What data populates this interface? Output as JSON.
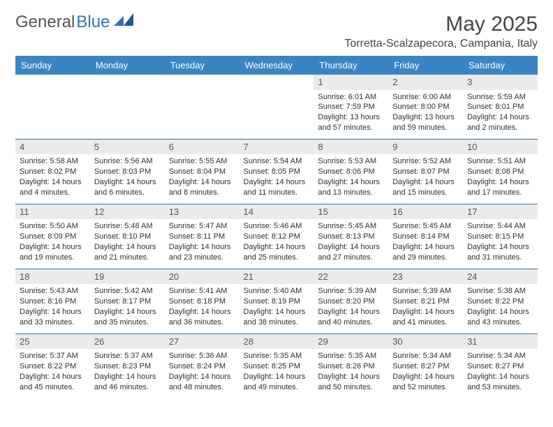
{
  "brand": {
    "text1": "General",
    "text2": "Blue"
  },
  "title": "May 2025",
  "location": "Torretta-Scalzapecora, Campania, Italy",
  "colors": {
    "header_bg": "#3b84c4",
    "header_text": "#ffffff",
    "daynum_bg": "#ebebeb",
    "row_border": "#326fa7",
    "brand_blue": "#2f72b9"
  },
  "day_headers": [
    "Sunday",
    "Monday",
    "Tuesday",
    "Wednesday",
    "Thursday",
    "Friday",
    "Saturday"
  ],
  "weeks": [
    [
      {
        "n": "",
        "sr": "",
        "ss": "",
        "dl": ""
      },
      {
        "n": "",
        "sr": "",
        "ss": "",
        "dl": ""
      },
      {
        "n": "",
        "sr": "",
        "ss": "",
        "dl": ""
      },
      {
        "n": "",
        "sr": "",
        "ss": "",
        "dl": ""
      },
      {
        "n": "1",
        "sr": "Sunrise: 6:01 AM",
        "ss": "Sunset: 7:59 PM",
        "dl": "Daylight: 13 hours and 57 minutes."
      },
      {
        "n": "2",
        "sr": "Sunrise: 6:00 AM",
        "ss": "Sunset: 8:00 PM",
        "dl": "Daylight: 13 hours and 59 minutes."
      },
      {
        "n": "3",
        "sr": "Sunrise: 5:59 AM",
        "ss": "Sunset: 8:01 PM",
        "dl": "Daylight: 14 hours and 2 minutes."
      }
    ],
    [
      {
        "n": "4",
        "sr": "Sunrise: 5:58 AM",
        "ss": "Sunset: 8:02 PM",
        "dl": "Daylight: 14 hours and 4 minutes."
      },
      {
        "n": "5",
        "sr": "Sunrise: 5:56 AM",
        "ss": "Sunset: 8:03 PM",
        "dl": "Daylight: 14 hours and 6 minutes."
      },
      {
        "n": "6",
        "sr": "Sunrise: 5:55 AM",
        "ss": "Sunset: 8:04 PM",
        "dl": "Daylight: 14 hours and 8 minutes."
      },
      {
        "n": "7",
        "sr": "Sunrise: 5:54 AM",
        "ss": "Sunset: 8:05 PM",
        "dl": "Daylight: 14 hours and 11 minutes."
      },
      {
        "n": "8",
        "sr": "Sunrise: 5:53 AM",
        "ss": "Sunset: 8:06 PM",
        "dl": "Daylight: 14 hours and 13 minutes."
      },
      {
        "n": "9",
        "sr": "Sunrise: 5:52 AM",
        "ss": "Sunset: 8:07 PM",
        "dl": "Daylight: 14 hours and 15 minutes."
      },
      {
        "n": "10",
        "sr": "Sunrise: 5:51 AM",
        "ss": "Sunset: 8:08 PM",
        "dl": "Daylight: 14 hours and 17 minutes."
      }
    ],
    [
      {
        "n": "11",
        "sr": "Sunrise: 5:50 AM",
        "ss": "Sunset: 8:09 PM",
        "dl": "Daylight: 14 hours and 19 minutes."
      },
      {
        "n": "12",
        "sr": "Sunrise: 5:48 AM",
        "ss": "Sunset: 8:10 PM",
        "dl": "Daylight: 14 hours and 21 minutes."
      },
      {
        "n": "13",
        "sr": "Sunrise: 5:47 AM",
        "ss": "Sunset: 8:11 PM",
        "dl": "Daylight: 14 hours and 23 minutes."
      },
      {
        "n": "14",
        "sr": "Sunrise: 5:46 AM",
        "ss": "Sunset: 8:12 PM",
        "dl": "Daylight: 14 hours and 25 minutes."
      },
      {
        "n": "15",
        "sr": "Sunrise: 5:45 AM",
        "ss": "Sunset: 8:13 PM",
        "dl": "Daylight: 14 hours and 27 minutes."
      },
      {
        "n": "16",
        "sr": "Sunrise: 5:45 AM",
        "ss": "Sunset: 8:14 PM",
        "dl": "Daylight: 14 hours and 29 minutes."
      },
      {
        "n": "17",
        "sr": "Sunrise: 5:44 AM",
        "ss": "Sunset: 8:15 PM",
        "dl": "Daylight: 14 hours and 31 minutes."
      }
    ],
    [
      {
        "n": "18",
        "sr": "Sunrise: 5:43 AM",
        "ss": "Sunset: 8:16 PM",
        "dl": "Daylight: 14 hours and 33 minutes."
      },
      {
        "n": "19",
        "sr": "Sunrise: 5:42 AM",
        "ss": "Sunset: 8:17 PM",
        "dl": "Daylight: 14 hours and 35 minutes."
      },
      {
        "n": "20",
        "sr": "Sunrise: 5:41 AM",
        "ss": "Sunset: 8:18 PM",
        "dl": "Daylight: 14 hours and 36 minutes."
      },
      {
        "n": "21",
        "sr": "Sunrise: 5:40 AM",
        "ss": "Sunset: 8:19 PM",
        "dl": "Daylight: 14 hours and 38 minutes."
      },
      {
        "n": "22",
        "sr": "Sunrise: 5:39 AM",
        "ss": "Sunset: 8:20 PM",
        "dl": "Daylight: 14 hours and 40 minutes."
      },
      {
        "n": "23",
        "sr": "Sunrise: 5:39 AM",
        "ss": "Sunset: 8:21 PM",
        "dl": "Daylight: 14 hours and 41 minutes."
      },
      {
        "n": "24",
        "sr": "Sunrise: 5:38 AM",
        "ss": "Sunset: 8:22 PM",
        "dl": "Daylight: 14 hours and 43 minutes."
      }
    ],
    [
      {
        "n": "25",
        "sr": "Sunrise: 5:37 AM",
        "ss": "Sunset: 8:22 PM",
        "dl": "Daylight: 14 hours and 45 minutes."
      },
      {
        "n": "26",
        "sr": "Sunrise: 5:37 AM",
        "ss": "Sunset: 8:23 PM",
        "dl": "Daylight: 14 hours and 46 minutes."
      },
      {
        "n": "27",
        "sr": "Sunrise: 5:36 AM",
        "ss": "Sunset: 8:24 PM",
        "dl": "Daylight: 14 hours and 48 minutes."
      },
      {
        "n": "28",
        "sr": "Sunrise: 5:35 AM",
        "ss": "Sunset: 8:25 PM",
        "dl": "Daylight: 14 hours and 49 minutes."
      },
      {
        "n": "29",
        "sr": "Sunrise: 5:35 AM",
        "ss": "Sunset: 8:26 PM",
        "dl": "Daylight: 14 hours and 50 minutes."
      },
      {
        "n": "30",
        "sr": "Sunrise: 5:34 AM",
        "ss": "Sunset: 8:27 PM",
        "dl": "Daylight: 14 hours and 52 minutes."
      },
      {
        "n": "31",
        "sr": "Sunrise: 5:34 AM",
        "ss": "Sunset: 8:27 PM",
        "dl": "Daylight: 14 hours and 53 minutes."
      }
    ]
  ]
}
